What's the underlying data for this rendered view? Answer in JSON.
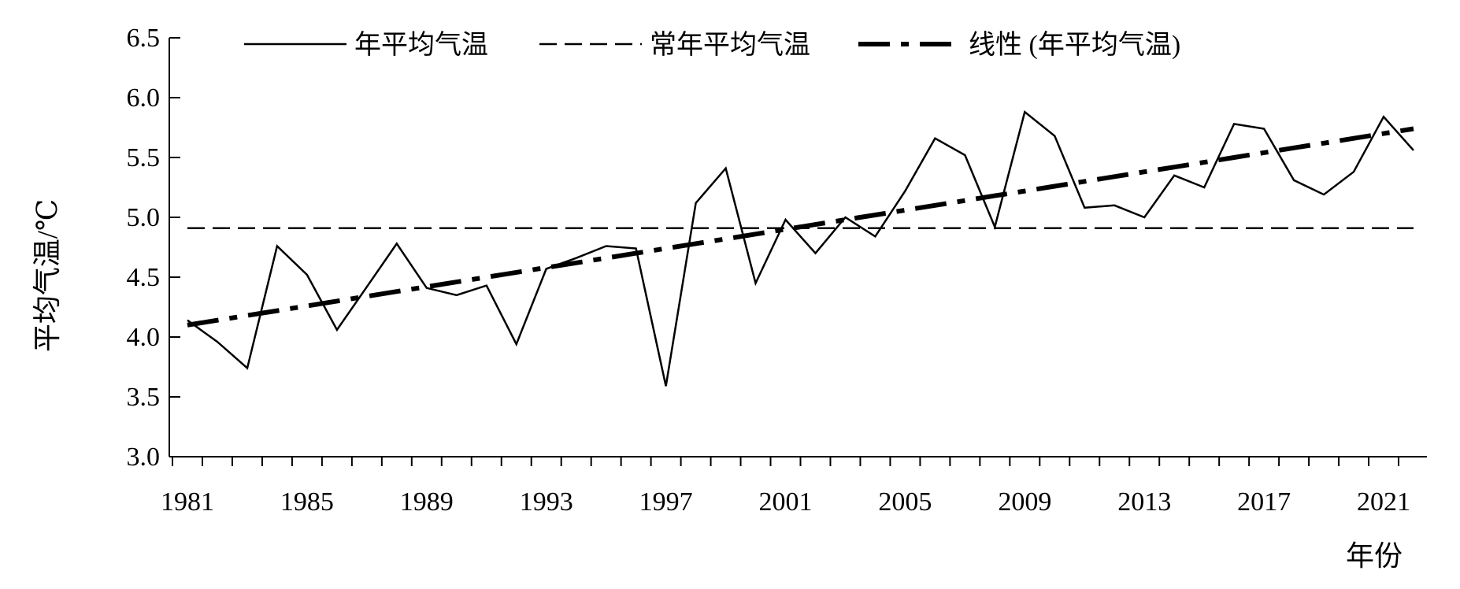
{
  "chart_data": {
    "type": "line",
    "title": "",
    "xlabel": "年份",
    "ylabel": "平均气温/℃",
    "ylim": [
      3.0,
      6.5
    ],
    "xlim": [
      1981,
      2022
    ],
    "yticks": [
      "3.0",
      "3.5",
      "4.0",
      "4.5",
      "5.0",
      "5.5",
      "6.0",
      "6.5"
    ],
    "xticks": [
      "1981",
      "1985",
      "1989",
      "1993",
      "1997",
      "2001",
      "2005",
      "2009",
      "2013",
      "2017",
      "2021"
    ],
    "grid": false,
    "legend_position": "top",
    "x": [
      1981,
      1982,
      1983,
      1984,
      1985,
      1986,
      1987,
      1988,
      1989,
      1990,
      1991,
      1992,
      1993,
      1994,
      1995,
      1996,
      1997,
      1998,
      1999,
      2000,
      2001,
      2002,
      2003,
      2004,
      2005,
      2006,
      2007,
      2008,
      2009,
      2010,
      2011,
      2012,
      2013,
      2014,
      2015,
      2016,
      2017,
      2018,
      2019,
      2020,
      2021,
      2022
    ],
    "series": [
      {
        "name": "年平均气温",
        "style": "solid",
        "values": [
          4.14,
          3.96,
          3.74,
          4.76,
          4.52,
          4.06,
          4.42,
          4.78,
          4.41,
          4.35,
          4.43,
          3.94,
          4.57,
          4.66,
          4.76,
          4.74,
          3.59,
          5.12,
          5.41,
          4.45,
          4.98,
          4.7,
          5.0,
          4.84,
          5.22,
          5.66,
          5.52,
          4.92,
          5.88,
          5.68,
          5.08,
          5.1,
          5.0,
          5.35,
          5.25,
          5.78,
          5.74,
          5.31,
          5.19,
          5.38,
          5.84,
          5.56
        ]
      },
      {
        "name": "常年平均气温",
        "style": "dashed",
        "values": [
          4.91,
          4.91,
          4.91,
          4.91,
          4.91,
          4.91,
          4.91,
          4.91,
          4.91,
          4.91,
          4.91,
          4.91,
          4.91,
          4.91,
          4.91,
          4.91,
          4.91,
          4.91,
          4.91,
          4.91,
          4.91,
          4.91,
          4.91,
          4.91,
          4.91,
          4.91,
          4.91,
          4.91,
          4.91,
          4.91,
          4.91,
          4.91,
          4.91,
          4.91,
          4.91,
          4.91,
          4.91,
          4.91,
          4.91,
          4.91,
          4.91,
          4.91
        ]
      },
      {
        "name": "线性 (年平均气温)",
        "style": "dash-dot",
        "values": [
          4.1,
          4.14,
          4.18,
          4.22,
          4.26,
          4.3,
          4.34,
          4.38,
          4.42,
          4.46,
          4.5,
          4.54,
          4.58,
          4.62,
          4.66,
          4.7,
          4.74,
          4.78,
          4.82,
          4.86,
          4.9,
          4.94,
          4.98,
          5.02,
          5.06,
          5.1,
          5.14,
          5.18,
          5.22,
          5.26,
          5.3,
          5.34,
          5.38,
          5.42,
          5.46,
          5.5,
          5.54,
          5.58,
          5.62,
          5.66,
          5.7,
          5.74
        ]
      }
    ]
  }
}
